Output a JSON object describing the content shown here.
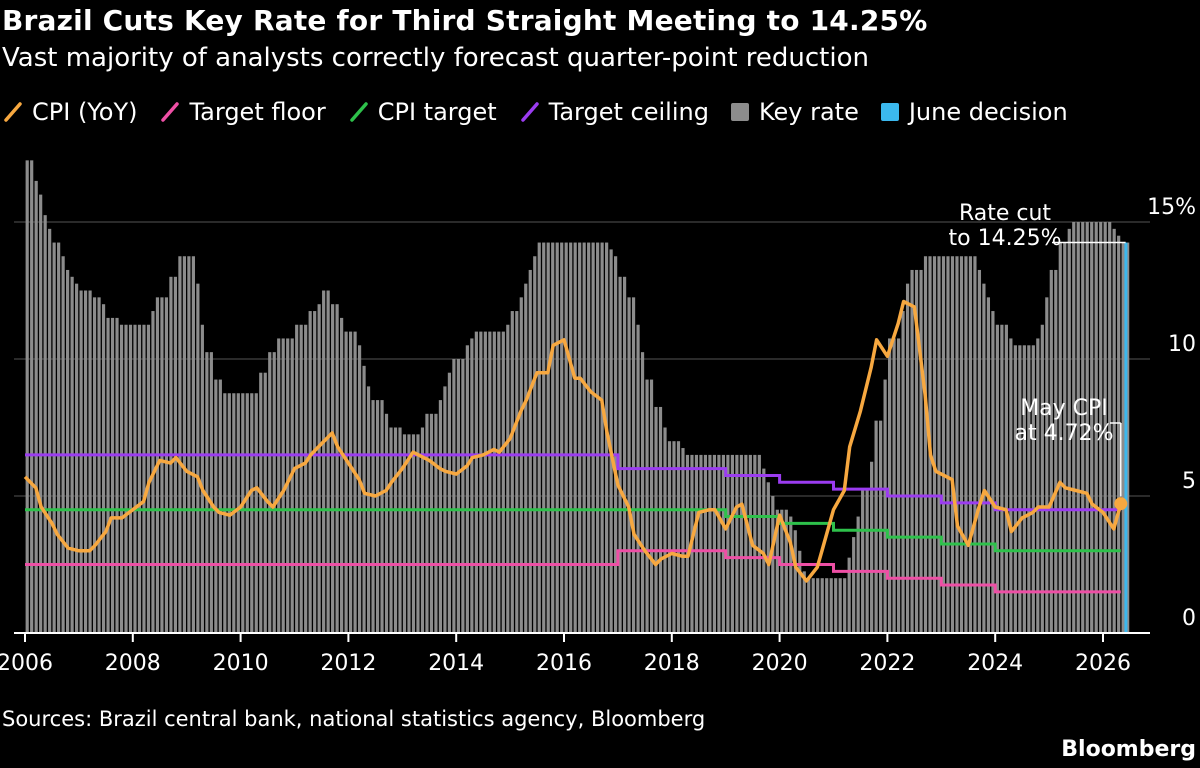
{
  "chart_data": {
    "type": "bar",
    "title": "Brazil Cuts Key Rate for Third Straight Meeting to 14.25%",
    "subtitle": "Vast majority of analysts correctly forecast quarter-point reduction",
    "legend": [
      {
        "name": "CPI (YoY)",
        "kind": "line",
        "color": "#f7a840"
      },
      {
        "name": "Target floor",
        "kind": "line",
        "color": "#ee4fa5"
      },
      {
        "name": "CPI target",
        "kind": "line",
        "color": "#2ec14b"
      },
      {
        "name": "Target ceiling",
        "kind": "line",
        "color": "#9b3cf0"
      },
      {
        "name": "Key rate",
        "kind": "box",
        "color": "#8c8c8c"
      },
      {
        "name": "June decision",
        "kind": "box",
        "color": "#3bb8ee"
      }
    ],
    "x_ticks": [
      "2006",
      "2008",
      "2010",
      "2012",
      "2014",
      "2016",
      "2018",
      "2020",
      "2022",
      "2024",
      "2026"
    ],
    "y_ticks": [
      "0",
      "5",
      "10",
      "15%"
    ],
    "ylim": [
      0,
      17.5
    ],
    "xlim": [
      2006,
      2026.7
    ],
    "key_rate": [
      [
        2006.0,
        17.25
      ],
      [
        2006.1,
        16.5
      ],
      [
        2006.2,
        16.0
      ],
      [
        2006.3,
        15.25
      ],
      [
        2006.4,
        14.75
      ],
      [
        2006.5,
        14.25
      ],
      [
        2006.6,
        13.75
      ],
      [
        2006.7,
        13.25
      ],
      [
        2006.8,
        13.0
      ],
      [
        2006.9,
        12.75
      ],
      [
        2007.0,
        12.5
      ],
      [
        2007.2,
        12.25
      ],
      [
        2007.4,
        12.0
      ],
      [
        2007.5,
        11.5
      ],
      [
        2007.7,
        11.25
      ],
      [
        2008.3,
        11.75
      ],
      [
        2008.4,
        12.25
      ],
      [
        2008.6,
        13.0
      ],
      [
        2008.8,
        13.75
      ],
      [
        2009.1,
        12.75
      ],
      [
        2009.2,
        11.25
      ],
      [
        2009.3,
        10.25
      ],
      [
        2009.5,
        9.25
      ],
      [
        2009.6,
        8.75
      ],
      [
        2010.3,
        9.5
      ],
      [
        2010.5,
        10.25
      ],
      [
        2010.6,
        10.75
      ],
      [
        2011.0,
        11.25
      ],
      [
        2011.2,
        11.75
      ],
      [
        2011.4,
        12.0
      ],
      [
        2011.5,
        12.5
      ],
      [
        2011.6,
        12.0
      ],
      [
        2011.8,
        11.5
      ],
      [
        2011.9,
        11.0
      ],
      [
        2012.1,
        10.5
      ],
      [
        2012.2,
        9.75
      ],
      [
        2012.3,
        9.0
      ],
      [
        2012.4,
        8.5
      ],
      [
        2012.6,
        8.0
      ],
      [
        2012.7,
        7.5
      ],
      [
        2013.0,
        7.25
      ],
      [
        2013.3,
        7.5
      ],
      [
        2013.4,
        8.0
      ],
      [
        2013.6,
        8.5
      ],
      [
        2013.7,
        9.0
      ],
      [
        2013.8,
        9.5
      ],
      [
        2013.9,
        10.0
      ],
      [
        2014.1,
        10.5
      ],
      [
        2014.2,
        10.75
      ],
      [
        2014.3,
        11.0
      ],
      [
        2014.9,
        11.25
      ],
      [
        2015.0,
        11.75
      ],
      [
        2015.1,
        12.25
      ],
      [
        2015.2,
        12.75
      ],
      [
        2015.3,
        13.25
      ],
      [
        2015.4,
        13.75
      ],
      [
        2015.5,
        14.25
      ],
      [
        2016.8,
        14.0
      ],
      [
        2016.9,
        13.75
      ],
      [
        2017.0,
        13.0
      ],
      [
        2017.1,
        12.25
      ],
      [
        2017.3,
        11.25
      ],
      [
        2017.4,
        10.25
      ],
      [
        2017.5,
        9.25
      ],
      [
        2017.6,
        8.25
      ],
      [
        2017.8,
        7.5
      ],
      [
        2017.9,
        7.0
      ],
      [
        2018.1,
        6.75
      ],
      [
        2018.2,
        6.5
      ],
      [
        2019.6,
        6.0
      ],
      [
        2019.7,
        5.5
      ],
      [
        2019.8,
        5.0
      ],
      [
        2019.9,
        4.5
      ],
      [
        2020.1,
        4.25
      ],
      [
        2020.2,
        3.75
      ],
      [
        2020.3,
        3.0
      ],
      [
        2020.4,
        2.25
      ],
      [
        2020.5,
        2.0
      ],
      [
        2021.2,
        2.75
      ],
      [
        2021.3,
        3.5
      ],
      [
        2021.4,
        4.25
      ],
      [
        2021.5,
        5.25
      ],
      [
        2021.6,
        6.25
      ],
      [
        2021.7,
        7.75
      ],
      [
        2021.9,
        9.25
      ],
      [
        2022.0,
        10.75
      ],
      [
        2022.2,
        11.75
      ],
      [
        2022.3,
        12.75
      ],
      [
        2022.4,
        13.25
      ],
      [
        2022.6,
        13.75
      ],
      [
        2023.6,
        13.25
      ],
      [
        2023.7,
        12.75
      ],
      [
        2023.8,
        12.25
      ],
      [
        2023.9,
        11.75
      ],
      [
        2024.0,
        11.25
      ],
      [
        2024.2,
        10.75
      ],
      [
        2024.3,
        10.5
      ],
      [
        2024.7,
        10.75
      ],
      [
        2024.8,
        11.25
      ],
      [
        2024.9,
        12.25
      ],
      [
        2025.0,
        13.25
      ],
      [
        2025.1,
        14.25
      ],
      [
        2025.3,
        14.75
      ],
      [
        2025.4,
        15.0
      ],
      [
        2026.1,
        14.75
      ],
      [
        2026.2,
        14.5
      ],
      [
        2026.3,
        14.25
      ]
    ],
    "cpi_yoy": [
      [
        2006.0,
        5.7
      ],
      [
        2006.2,
        5.3
      ],
      [
        2006.3,
        4.6
      ],
      [
        2006.5,
        4.0
      ],
      [
        2006.6,
        3.6
      ],
      [
        2006.8,
        3.1
      ],
      [
        2007.0,
        3.0
      ],
      [
        2007.2,
        3.0
      ],
      [
        2007.3,
        3.2
      ],
      [
        2007.5,
        3.7
      ],
      [
        2007.6,
        4.2
      ],
      [
        2007.8,
        4.2
      ],
      [
        2008.0,
        4.5
      ],
      [
        2008.2,
        4.8
      ],
      [
        2008.3,
        5.5
      ],
      [
        2008.5,
        6.3
      ],
      [
        2008.7,
        6.2
      ],
      [
        2008.8,
        6.4
      ],
      [
        2009.0,
        5.9
      ],
      [
        2009.2,
        5.7
      ],
      [
        2009.3,
        5.2
      ],
      [
        2009.5,
        4.6
      ],
      [
        2009.6,
        4.4
      ],
      [
        2009.8,
        4.3
      ],
      [
        2010.0,
        4.6
      ],
      [
        2010.2,
        5.2
      ],
      [
        2010.3,
        5.3
      ],
      [
        2010.5,
        4.8
      ],
      [
        2010.6,
        4.6
      ],
      [
        2010.8,
        5.2
      ],
      [
        2011.0,
        6.0
      ],
      [
        2011.2,
        6.2
      ],
      [
        2011.3,
        6.5
      ],
      [
        2011.5,
        6.9
      ],
      [
        2011.7,
        7.3
      ],
      [
        2011.8,
        6.8
      ],
      [
        2012.0,
        6.2
      ],
      [
        2012.2,
        5.6
      ],
      [
        2012.3,
        5.1
      ],
      [
        2012.5,
        5.0
      ],
      [
        2012.7,
        5.2
      ],
      [
        2012.8,
        5.5
      ],
      [
        2013.0,
        6.0
      ],
      [
        2013.2,
        6.6
      ],
      [
        2013.3,
        6.5
      ],
      [
        2013.5,
        6.3
      ],
      [
        2013.7,
        6.0
      ],
      [
        2013.8,
        5.9
      ],
      [
        2014.0,
        5.8
      ],
      [
        2014.2,
        6.1
      ],
      [
        2014.3,
        6.4
      ],
      [
        2014.5,
        6.5
      ],
      [
        2014.7,
        6.7
      ],
      [
        2014.8,
        6.6
      ],
      [
        2015.0,
        7.1
      ],
      [
        2015.2,
        8.1
      ],
      [
        2015.3,
        8.5
      ],
      [
        2015.5,
        9.5
      ],
      [
        2015.7,
        9.5
      ],
      [
        2015.8,
        10.5
      ],
      [
        2016.0,
        10.7
      ],
      [
        2016.2,
        9.3
      ],
      [
        2016.3,
        9.3
      ],
      [
        2016.5,
        8.8
      ],
      [
        2016.7,
        8.5
      ],
      [
        2016.8,
        7.3
      ],
      [
        2017.0,
        5.4
      ],
      [
        2017.2,
        4.6
      ],
      [
        2017.3,
        3.6
      ],
      [
        2017.5,
        3.0
      ],
      [
        2017.7,
        2.5
      ],
      [
        2017.8,
        2.7
      ],
      [
        2018.0,
        2.9
      ],
      [
        2018.2,
        2.8
      ],
      [
        2018.3,
        2.8
      ],
      [
        2018.5,
        4.4
      ],
      [
        2018.7,
        4.5
      ],
      [
        2018.8,
        4.5
      ],
      [
        2019.0,
        3.8
      ],
      [
        2019.2,
        4.6
      ],
      [
        2019.3,
        4.7
      ],
      [
        2019.5,
        3.2
      ],
      [
        2019.7,
        2.9
      ],
      [
        2019.8,
        2.5
      ],
      [
        2020.0,
        4.3
      ],
      [
        2020.2,
        3.3
      ],
      [
        2020.3,
        2.4
      ],
      [
        2020.5,
        1.9
      ],
      [
        2020.7,
        2.4
      ],
      [
        2020.8,
        3.1
      ],
      [
        2021.0,
        4.5
      ],
      [
        2021.2,
        5.2
      ],
      [
        2021.3,
        6.8
      ],
      [
        2021.5,
        8.1
      ],
      [
        2021.7,
        9.7
      ],
      [
        2021.8,
        10.7
      ],
      [
        2022.0,
        10.1
      ],
      [
        2022.2,
        11.3
      ],
      [
        2022.3,
        12.1
      ],
      [
        2022.5,
        11.9
      ],
      [
        2022.7,
        8.7
      ],
      [
        2022.8,
        6.5
      ],
      [
        2022.9,
        5.9
      ],
      [
        2023.0,
        5.8
      ],
      [
        2023.2,
        5.6
      ],
      [
        2023.3,
        3.9
      ],
      [
        2023.5,
        3.2
      ],
      [
        2023.7,
        4.6
      ],
      [
        2023.8,
        5.2
      ],
      [
        2024.0,
        4.6
      ],
      [
        2024.2,
        4.5
      ],
      [
        2024.3,
        3.7
      ],
      [
        2024.5,
        4.2
      ],
      [
        2024.7,
        4.4
      ],
      [
        2024.8,
        4.6
      ],
      [
        2025.0,
        4.6
      ],
      [
        2025.2,
        5.5
      ],
      [
        2025.3,
        5.3
      ],
      [
        2025.5,
        5.2
      ],
      [
        2025.7,
        5.1
      ],
      [
        2025.8,
        4.7
      ],
      [
        2026.0,
        4.4
      ],
      [
        2026.2,
        3.8
      ],
      [
        2026.33,
        4.72
      ]
    ],
    "target_ceiling": [
      [
        2006.0,
        6.5
      ],
      [
        2017.0,
        6.0
      ],
      [
        2019.0,
        5.75
      ],
      [
        2020.0,
        5.5
      ],
      [
        2021.0,
        5.25
      ],
      [
        2022.0,
        5.0
      ],
      [
        2023.0,
        4.75
      ],
      [
        2024.0,
        4.5
      ],
      [
        2026.33,
        4.5
      ]
    ],
    "cpi_target": [
      [
        2006.0,
        4.5
      ],
      [
        2019.0,
        4.25
      ],
      [
        2020.0,
        4.0
      ],
      [
        2021.0,
        3.75
      ],
      [
        2022.0,
        3.5
      ],
      [
        2023.0,
        3.25
      ],
      [
        2024.0,
        3.0
      ],
      [
        2026.33,
        3.0
      ]
    ],
    "target_floor": [
      [
        2006.0,
        2.5
      ],
      [
        2017.0,
        3.0
      ],
      [
        2019.0,
        2.75
      ],
      [
        2020.0,
        2.5
      ],
      [
        2021.0,
        2.25
      ],
      [
        2022.0,
        2.0
      ],
      [
        2023.0,
        1.75
      ],
      [
        2024.0,
        1.5
      ],
      [
        2026.33,
        1.5
      ]
    ],
    "june_decision": {
      "x": 2026.42,
      "value": 14.25
    },
    "annotations": [
      {
        "lines": [
          "Rate cut",
          "to 14.25%"
        ],
        "x": 2026.42,
        "value": 14.25
      },
      {
        "lines": [
          "May CPI",
          "at 4.72%"
        ],
        "x": 2026.33,
        "value": 4.72
      }
    ]
  },
  "source": "Sources: Brazil central bank, national statistics agency, Bloomberg",
  "brand": "Bloomberg"
}
